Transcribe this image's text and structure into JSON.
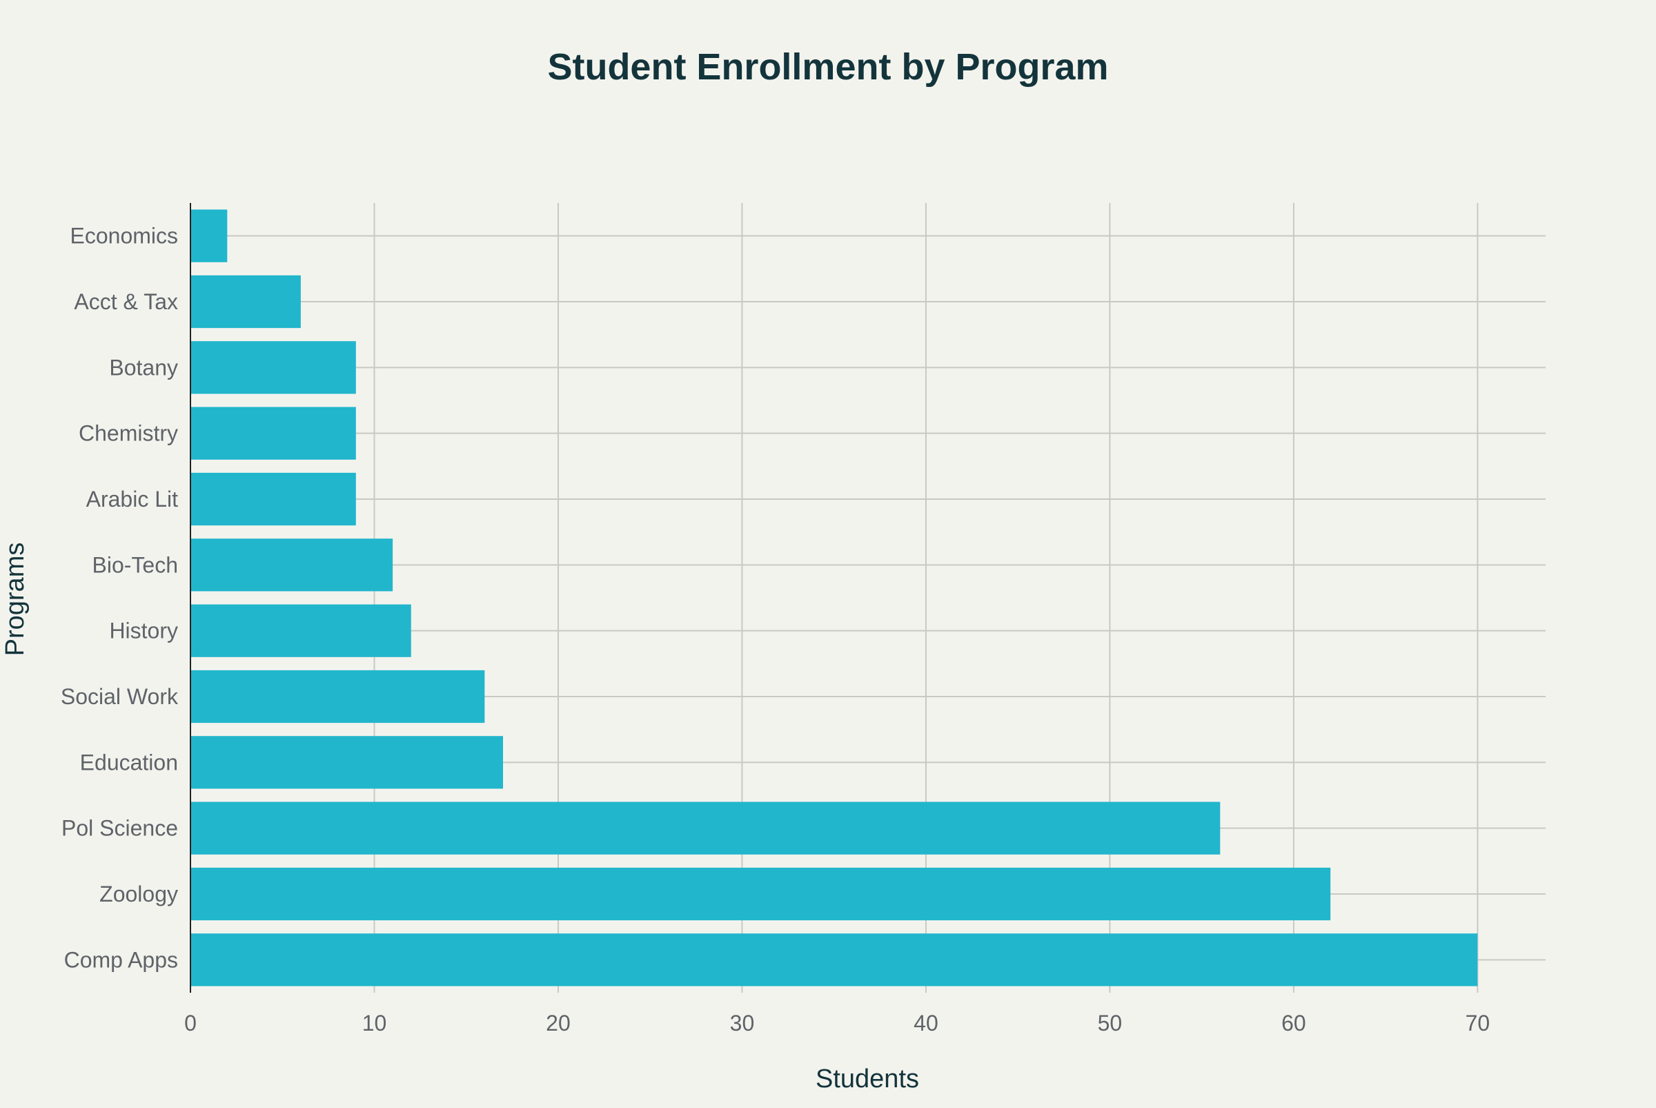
{
  "chart_data": {
    "type": "bar",
    "orientation": "horizontal",
    "title": "Student Enrollment by Program",
    "xlabel": "Students",
    "ylabel": "Programs",
    "categories": [
      "Comp Apps",
      "Zoology",
      "Pol Science",
      "Education",
      "Social Work",
      "History",
      "Bio-Tech",
      "Arabic Lit",
      "Chemistry",
      "Botany",
      "Acct & Tax",
      "Economics"
    ],
    "values": [
      70,
      62,
      56,
      17,
      16,
      12,
      11,
      9,
      9,
      9,
      6,
      2
    ],
    "xlim": [
      0,
      73.7
    ],
    "xticks": [
      0,
      10,
      20,
      30,
      40,
      50,
      60,
      70
    ],
    "grid": true,
    "legend": "none",
    "bar_color": "#21b6cc"
  }
}
